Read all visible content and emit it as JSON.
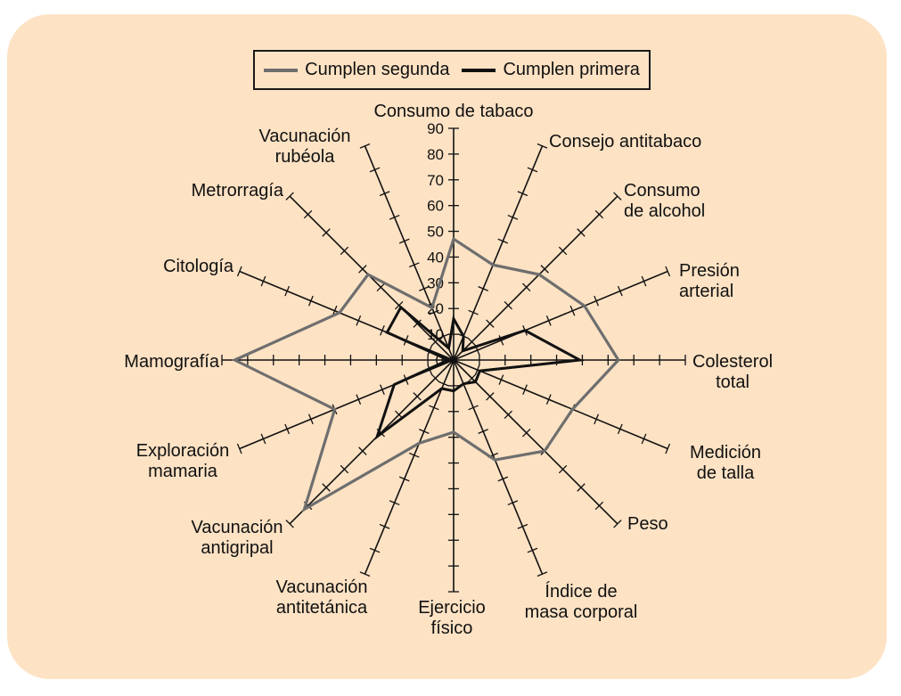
{
  "chart_data": {
    "type": "radar",
    "categories": [
      "Consumo de tabaco",
      "Consejo antitabaco",
      "Consumo de alcohol",
      "Presión arterial",
      "Colesterol total",
      "Medición de talla",
      "Peso",
      "Índice de masa corporal",
      "Ejercicio físico",
      "Vacunación antitetánica",
      "Vacunación antigripal",
      "Exploración mamaria",
      "Mamografía",
      "Citología",
      "Metrorragía",
      "Vacunación rubéola"
    ],
    "series": [
      {
        "name": "Cumplen segunda",
        "color": "#6e6e6e",
        "values": [
          47,
          40,
          47,
          55,
          64,
          50,
          50,
          42,
          28,
          35,
          82,
          50,
          85,
          48,
          47,
          22
        ]
      },
      {
        "name": "Cumplen primera",
        "color": "#111111",
        "values": [
          16,
          10,
          5,
          30,
          49,
          11,
          12,
          10,
          12,
          12,
          42,
          25,
          2,
          28,
          29,
          5
        ]
      }
    ],
    "r_ticks": [
      0,
      10,
      20,
      30,
      40,
      50,
      60,
      70,
      80,
      90
    ],
    "r_range": [
      0,
      90
    ],
    "legend_position": "top-center",
    "grid": false
  }
}
